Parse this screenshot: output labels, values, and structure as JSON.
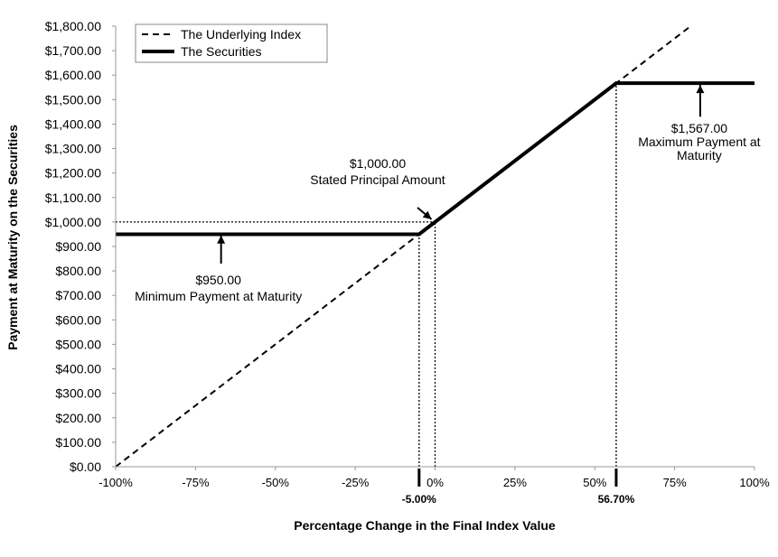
{
  "chart_data": {
    "type": "line",
    "xlabel": "Percentage Change in the Final Index Value",
    "ylabel": "Payment at Maturity on the Securities",
    "xlim": [
      -100,
      100
    ],
    "ylim": [
      0,
      1800
    ],
    "x_ticks": [
      -100,
      -75,
      -50,
      -25,
      0,
      25,
      50,
      75,
      100
    ],
    "x_tick_labels": [
      "-100%",
      "-75%",
      "-50%",
      "-25%",
      "0%",
      "25%",
      "50%",
      "75%",
      "100%"
    ],
    "y_ticks": [
      0,
      100,
      200,
      300,
      400,
      500,
      600,
      700,
      800,
      900,
      1000,
      1100,
      1200,
      1300,
      1400,
      1500,
      1600,
      1700,
      1800
    ],
    "y_tick_labels": [
      "$0.00",
      "$100.00",
      "$200.00",
      "$300.00",
      "$400.00",
      "$500.00",
      "$600.00",
      "$700.00",
      "$800.00",
      "$900.00",
      "$1,000.00",
      "$1,100.00",
      "$1,200.00",
      "$1,300.00",
      "$1,400.00",
      "$1,500.00",
      "$1,600.00",
      "$1,700.00",
      "$1,800.00"
    ],
    "grid": false,
    "legend_position": "top-left",
    "series": [
      {
        "name": "The Underlying Index",
        "style": "dashed",
        "x": [
          -100,
          80
        ],
        "y": [
          0,
          1800
        ]
      },
      {
        "name": "The Securities",
        "style": "solid-thick",
        "x": [
          -100,
          -5,
          56.7,
          100
        ],
        "y": [
          950,
          950,
          1567,
          1567
        ]
      }
    ],
    "markers": [
      {
        "x": -5,
        "label": "-5.00%"
      },
      {
        "x": 56.7,
        "label": "56.70%"
      }
    ],
    "guide_lines": [
      {
        "x": [
          -100,
          0
        ],
        "y": [
          1000,
          1000
        ]
      },
      {
        "x": [
          0,
          0
        ],
        "y": [
          0,
          1000
        ]
      },
      {
        "x": [
          -5,
          -5
        ],
        "y": [
          0,
          950
        ]
      },
      {
        "x": [
          56.7,
          56.7
        ],
        "y": [
          0,
          1567
        ]
      }
    ],
    "annotations": [
      {
        "lines": [
          "$950.00",
          "Minimum  Payment  at Maturity"
        ],
        "arrow_x": -67,
        "arrow_from": 830,
        "arrow_to": 945
      },
      {
        "lines": [
          "$1,000.00",
          "Stated Principal Amount"
        ],
        "arrow_to_x": 0,
        "arrow_to_y": 1000
      },
      {
        "lines": [
          "$1,567.00",
          "Maximum  Payment at",
          "Maturity"
        ],
        "arrow_x": 83,
        "arrow_from": 1430,
        "arrow_to": 1560
      }
    ]
  }
}
